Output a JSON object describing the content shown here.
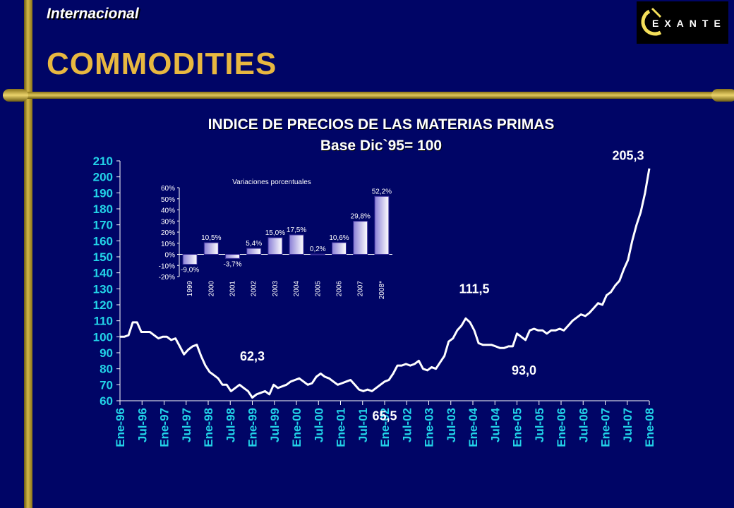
{
  "header": {
    "section": "Internacional",
    "title": "COMMODITIES",
    "logo_text": "EXANTE"
  },
  "chart_data": [
    {
      "type": "line",
      "title": "INDICE DE PRECIOS DE LAS MATERIAS PRIMAS",
      "subtitle": "Base Dic`95= 100",
      "ylim": [
        60,
        210
      ],
      "yticks": [
        60,
        70,
        80,
        90,
        100,
        110,
        120,
        130,
        140,
        150,
        160,
        170,
        180,
        190,
        200,
        210
      ],
      "xtick_labels": [
        "Ene-96",
        "Jul-96",
        "Ene-97",
        "Jul-97",
        "Ene-98",
        "Jul-98",
        "Ene-99",
        "Jul-99",
        "Ene-00",
        "Jul-00",
        "Ene-01",
        "Jul-01",
        "Ene-02",
        "Jul-02",
        "Ene-03",
        "Jul-03",
        "Ene-04",
        "Jul-04",
        "Ene-05",
        "Jul-05",
        "Ene-06",
        "Jul-06",
        "Ene-07",
        "Jul-07",
        "Ene-08"
      ],
      "series": [
        {
          "values": [
            100,
            100,
            101,
            109,
            109,
            103,
            103,
            103,
            101,
            99,
            100,
            100,
            98,
            99,
            94,
            89,
            92,
            94,
            95,
            88,
            82,
            78,
            76,
            74,
            70,
            70,
            66,
            68,
            70,
            68,
            66,
            62,
            64,
            65,
            66,
            64,
            70,
            68,
            69,
            70,
            72,
            73,
            74,
            72,
            70,
            71,
            75,
            77,
            75,
            74,
            72,
            70,
            71,
            72,
            73,
            70,
            67,
            66,
            67,
            66,
            68,
            70,
            72,
            73,
            77,
            82,
            82,
            83,
            82,
            83,
            85,
            80,
            79,
            81,
            80,
            84,
            88,
            97,
            99,
            104,
            107,
            111.5,
            109,
            104,
            96,
            95,
            95,
            95,
            94,
            93,
            93,
            94,
            94,
            102,
            100,
            98,
            104,
            105,
            104,
            104,
            102,
            104,
            104,
            105,
            104,
            107,
            110,
            112,
            114,
            113,
            115,
            118,
            121,
            120,
            126,
            128,
            132,
            135,
            142,
            148,
            160,
            170,
            178,
            190,
            205.3
          ]
        }
      ],
      "annotations": [
        {
          "text": "62,3",
          "x": "Ene-99",
          "y": 62.3
        },
        {
          "text": "65,5",
          "x": "Ene-02",
          "y": 65.5
        },
        {
          "text": "111,5",
          "x": "Ene-04",
          "y": 111.5
        },
        {
          "text": "93,0",
          "x": "Ene-05",
          "y": 93.0
        },
        {
          "text": "205,3",
          "x": "Ene-08",
          "y": 205.3
        }
      ]
    },
    {
      "type": "bar",
      "title": "Variaciones porcentuales",
      "categories": [
        "1999",
        "2000",
        "2001",
        "2002",
        "2003",
        "2004",
        "2005",
        "2006",
        "2007",
        "2008*"
      ],
      "values": [
        -9.0,
        10.5,
        -3.7,
        5.4,
        15.0,
        17.5,
        0.2,
        10.6,
        29.8,
        52.2
      ],
      "value_labels": [
        "-9,0%",
        "10,5%",
        "-3,7%",
        "5,4%",
        "15,0%",
        "17,5%",
        "0,2%",
        "10,6%",
        "29,8%",
        "52,2%"
      ],
      "ylim": [
        -20,
        60
      ],
      "ytick_labels": [
        "-20%",
        "-10%",
        "0%",
        "10%",
        "20%",
        "30%",
        "40%",
        "50%",
        "60%"
      ]
    }
  ]
}
